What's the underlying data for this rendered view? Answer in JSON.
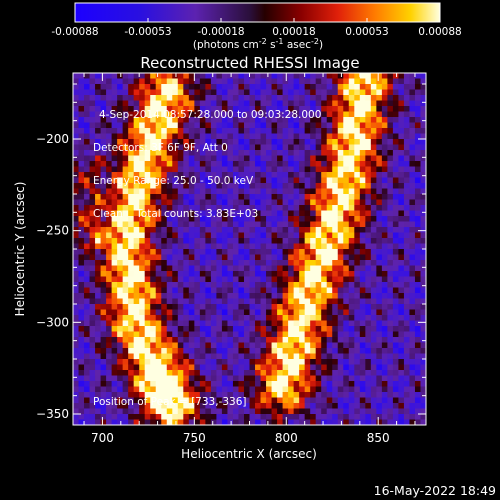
{
  "chart_data": {
    "type": "heatmap",
    "title": "Reconstructed RHESSI Image",
    "xlabel": "Heliocentric X (arcsec)",
    "ylabel": "Heliocentric Y (arcsec)",
    "xlim": [
      684,
      876
    ],
    "ylim": [
      -356,
      -164
    ],
    "xticks": [
      700,
      750,
      800,
      850
    ],
    "yticks": [
      -200,
      -250,
      -300,
      -350
    ],
    "colorbar": {
      "ticks": [
        "-0.00088",
        "-0.00053",
        "-0.00018",
        "0.00018",
        "0.00053",
        "0.00088"
      ],
      "range": [
        -0.00088,
        0.00088
      ],
      "unit_prefix": "(photons cm",
      "unit_exp1": "-2",
      "unit_mid": " s",
      "unit_exp2": "-1",
      "unit_mid2": " asec",
      "unit_exp3": "-2",
      "unit_suffix": ")"
    },
    "annotations": {
      "time_range": "4-Sep-2014 08:57:28.000 to 09:03:28.000",
      "detectors": "Detectors: 3F 6F 9F, Att 0",
      "energy": "Energy Range: 25.0 - 50.0 keV",
      "method": "Clean    Total counts: 3.83E+03",
      "peak": "Position of Peak = [733,-336]"
    },
    "peak_position": [
      733,
      -336
    ],
    "ridges": [
      {
        "name": "left",
        "points": [
          [
            735,
            -175
          ],
          [
            722,
            -215
          ],
          [
            712,
            -255
          ],
          [
            718,
            -300
          ],
          [
            738,
            -345
          ]
        ]
      },
      {
        "name": "right",
        "points": [
          [
            843,
            -165
          ],
          [
            836,
            -205
          ],
          [
            826,
            -245
          ],
          [
            812,
            -285
          ],
          [
            798,
            -335
          ]
        ]
      }
    ]
  },
  "footer": {
    "timestamp": "16-May-2022 18:49"
  }
}
